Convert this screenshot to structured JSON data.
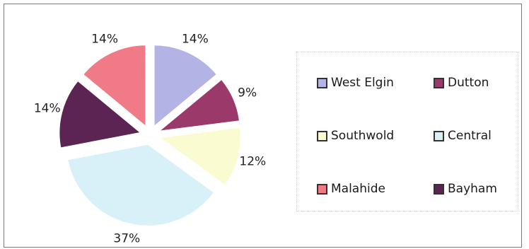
{
  "chart_data": {
    "type": "pie",
    "exploded": true,
    "legend_position": "right",
    "categories": [
      "West Elgin",
      "Dutton",
      "Central",
      "Bayham",
      "Southwold",
      "Malahide"
    ],
    "slices": [
      {
        "name": "West Elgin",
        "value": 14,
        "label": "14%",
        "color": "#b3b3e6"
      },
      {
        "name": "Dutton",
        "value": 9,
        "label": "9%",
        "color": "#9b3a6a"
      },
      {
        "name": "Southwold",
        "value": 12,
        "label": "12%",
        "color": "#fbfbd2"
      },
      {
        "name": "Central",
        "value": 37,
        "label": "37%",
        "color": "#d8f1f8"
      },
      {
        "name": "Bayham",
        "value": 14,
        "label": "14%",
        "color": "#5c2452"
      },
      {
        "name": "Malahide",
        "value": 14,
        "label": "14%",
        "color": "#f07b86"
      }
    ]
  },
  "legend": {
    "items": [
      {
        "name": "West Elgin",
        "color": "#b3b3e6"
      },
      {
        "name": "Dutton",
        "color": "#9b3a6a"
      },
      {
        "name": "Southwold",
        "color": "#fbfbd2"
      },
      {
        "name": "Central",
        "color": "#d8f1f8"
      },
      {
        "name": "Malahide",
        "color": "#f07b86"
      },
      {
        "name": "Bayham",
        "color": "#5c2452"
      }
    ]
  }
}
